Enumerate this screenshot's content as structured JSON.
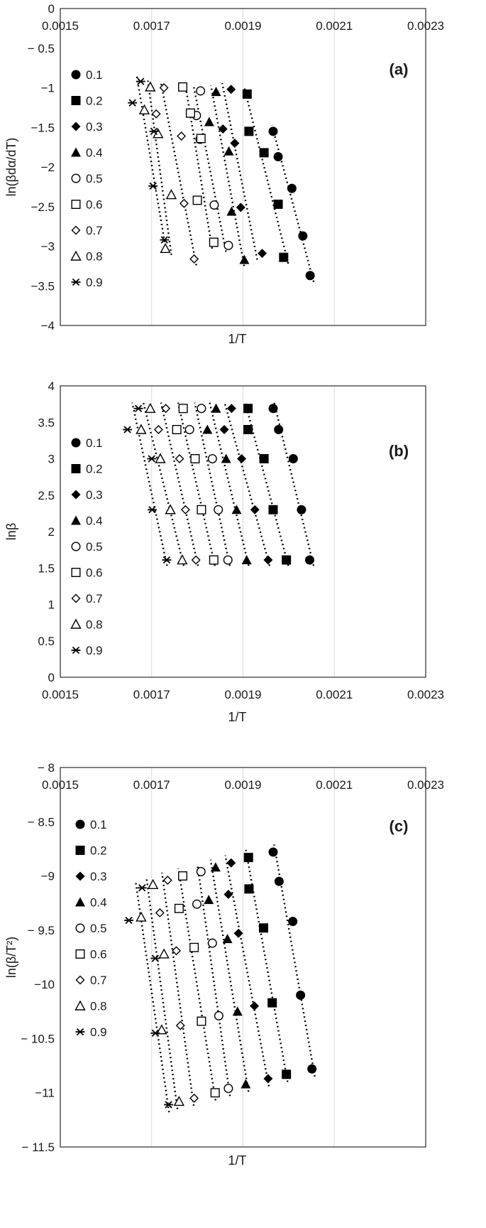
{
  "chart_data": [
    {
      "type": "scatter",
      "panel_label": "(a)",
      "xlabel": "1/T",
      "ylabel": "ln(βdα/dT)",
      "xlim": [
        0.0015,
        0.0023
      ],
      "ylim": [
        -4,
        0
      ],
      "x_ticks": [
        "0.0015",
        "0.0017",
        "0.0019",
        "0.0021",
        "0.0023"
      ],
      "y_ticks": [
        "0",
        "− 0.5",
        "−1",
        "−1.5",
        "−2",
        "−2.5",
        "−3",
        "−3.5",
        "−4"
      ],
      "x_axis_position": "top",
      "grid": "vertical",
      "legend_position": "left",
      "series": [
        {
          "name": "0.1",
          "marker": "filled-circle",
          "x": [
            0.001966,
            0.001977,
            0.002007,
            0.002031,
            0.002047
          ],
          "y": [
            -1.55,
            -1.87,
            -2.27,
            -2.87,
            -3.37
          ]
        },
        {
          "name": "0.2",
          "marker": "filled-square",
          "x": [
            0.001909,
            0.001913,
            0.001946,
            0.001977,
            0.001989
          ],
          "y": [
            -1.08,
            -1.55,
            -1.82,
            -2.47,
            -3.14
          ]
        },
        {
          "name": "0.3",
          "marker": "filled-diamond",
          "x": [
            0.001874,
            0.001856,
            0.001882,
            0.001895,
            0.001942
          ],
          "y": [
            -1.02,
            -1.52,
            -1.7,
            -2.51,
            -3.09
          ]
        },
        {
          "name": "0.4",
          "marker": "filled-triangle",
          "x": [
            0.001841,
            0.001826,
            0.001869,
            0.001875,
            0.001903
          ],
          "y": [
            -1.05,
            -1.43,
            -1.8,
            -2.56,
            -3.17
          ]
        },
        {
          "name": "0.5",
          "marker": "open-circle",
          "x": [
            0.001807,
            0.001798,
            0.001806,
            0.001837,
            0.001868
          ],
          "y": [
            -1.04,
            -1.35,
            -1.65,
            -2.48,
            -2.99
          ]
        },
        {
          "name": "0.6",
          "marker": "open-square",
          "x": [
            0.001768,
            0.001785,
            0.001808,
            0.0018,
            0.001836
          ],
          "y": [
            -0.99,
            -1.32,
            -1.64,
            -2.42,
            -2.95
          ]
        },
        {
          "name": "0.7",
          "marker": "open-diamond",
          "x": [
            0.001727,
            0.00171,
            0.001765,
            0.001771,
            0.001793
          ],
          "y": [
            -1.0,
            -1.33,
            -1.61,
            -2.46,
            -3.16
          ]
        },
        {
          "name": "0.8",
          "marker": "open-triangle",
          "x": [
            0.001697,
            0.001684,
            0.001714,
            0.001743,
            0.00173
          ],
          "y": [
            -0.99,
            -1.28,
            -1.58,
            -2.35,
            -3.03
          ]
        },
        {
          "name": "0.9",
          "marker": "asterisk",
          "x": [
            0.001676,
            0.001658,
            0.001705,
            0.001703,
            0.001728
          ],
          "y": [
            -0.92,
            -1.19,
            -1.55,
            -2.24,
            -2.92
          ]
        }
      ]
    },
    {
      "type": "scatter",
      "panel_label": "(b)",
      "xlabel": "1/T",
      "ylabel": "lnβ",
      "xlim": [
        0.0015,
        0.0023
      ],
      "ylim": [
        0,
        4
      ],
      "x_ticks": [
        "0.0015",
        "0.0017",
        "0.0019",
        "0.0021",
        "0.0023"
      ],
      "y_ticks": [
        "0",
        "0.5",
        "1",
        "1.5",
        "2",
        "2.5",
        "3",
        "3.5",
        "4"
      ],
      "x_axis_position": "bottom",
      "grid": "vertical",
      "legend_position": "left",
      "series": [
        {
          "name": "0.1",
          "marker": "filled-circle",
          "x": [
            0.001966,
            0.001978,
            0.00201,
            0.002028,
            0.002046
          ],
          "y": [
            3.69,
            3.4,
            3.0,
            2.3,
            1.61
          ]
        },
        {
          "name": "0.2",
          "marker": "filled-square",
          "x": [
            0.001911,
            0.001911,
            0.001946,
            0.001966,
            0.001995
          ],
          "y": [
            3.69,
            3.4,
            3.0,
            2.3,
            1.61
          ]
        },
        {
          "name": "0.3",
          "marker": "filled-diamond",
          "x": [
            0.001875,
            0.001859,
            0.001897,
            0.001926,
            0.001955
          ],
          "y": [
            3.69,
            3.4,
            3.0,
            2.3,
            1.61
          ]
        },
        {
          "name": "0.4",
          "marker": "filled-triangle",
          "x": [
            0.001841,
            0.001822,
            0.001863,
            0.001886,
            0.001908
          ],
          "y": [
            3.69,
            3.4,
            3.0,
            2.3,
            1.61
          ]
        },
        {
          "name": "0.5",
          "marker": "open-circle",
          "x": [
            0.001809,
            0.001783,
            0.001833,
            0.001846,
            0.001867
          ],
          "y": [
            3.69,
            3.4,
            3.0,
            2.3,
            1.61
          ]
        },
        {
          "name": "0.6",
          "marker": "open-square",
          "x": [
            0.001769,
            0.001755,
            0.001795,
            0.001809,
            0.001836
          ],
          "y": [
            3.69,
            3.4,
            3.0,
            2.3,
            1.61
          ]
        },
        {
          "name": "0.7",
          "marker": "open-diamond",
          "x": [
            0.001731,
            0.001715,
            0.001761,
            0.001774,
            0.001797
          ],
          "y": [
            3.69,
            3.4,
            3.0,
            2.3,
            1.61
          ]
        },
        {
          "name": "0.8",
          "marker": "open-triangle",
          "x": [
            0.001697,
            0.001677,
            0.001719,
            0.001741,
            0.001767
          ],
          "y": [
            3.69,
            3.4,
            3.0,
            2.3,
            1.61
          ]
        },
        {
          "name": "0.9",
          "marker": "asterisk",
          "x": [
            0.001671,
            0.001647,
            0.0017,
            0.001701,
            0.001733
          ],
          "y": [
            3.69,
            3.4,
            3.0,
            2.3,
            1.61
          ]
        }
      ]
    },
    {
      "type": "scatter",
      "panel_label": "(c)",
      "xlabel": "1/T",
      "ylabel": "ln(β/T²)",
      "xlim": [
        0.0015,
        0.0023
      ],
      "ylim": [
        -11.5,
        -8
      ],
      "x_ticks": [
        "0.0015",
        "0.0017",
        "0.0019",
        "0.0021",
        "0.0023"
      ],
      "y_ticks": [
        "− 8",
        "− 8.5",
        "−9",
        "− 9.5",
        "−10",
        "− 10.5",
        "−11",
        "− 11.5"
      ],
      "x_axis_position": "top",
      "grid": "vertical",
      "legend_position": "left",
      "series": [
        {
          "name": "0.1",
          "marker": "filled-circle",
          "x": [
            0.001966,
            0.001979,
            0.002009,
            0.002026,
            0.002051
          ],
          "y": [
            -8.78,
            -9.05,
            -9.42,
            -10.1,
            -10.78
          ]
        },
        {
          "name": "0.2",
          "marker": "filled-square",
          "x": [
            0.001912,
            0.001913,
            0.001945,
            0.001964,
            0.001995
          ],
          "y": [
            -8.83,
            -9.12,
            -9.48,
            -10.17,
            -10.83
          ]
        },
        {
          "name": "0.3",
          "marker": "filled-diamond",
          "x": [
            0.001874,
            0.001868,
            0.00189,
            0.001925,
            0.001955
          ],
          "y": [
            -8.88,
            -9.17,
            -9.53,
            -10.2,
            -10.87
          ]
        },
        {
          "name": "0.4",
          "marker": "filled-triangle",
          "x": [
            0.00184,
            0.001825,
            0.001866,
            0.001888,
            0.001906
          ],
          "y": [
            -8.92,
            -9.22,
            -9.58,
            -10.25,
            -10.92
          ]
        },
        {
          "name": "0.5",
          "marker": "open-circle",
          "x": [
            0.001808,
            0.001799,
            0.001833,
            0.001847,
            0.001868
          ],
          "y": [
            -8.96,
            -9.26,
            -9.62,
            -10.29,
            -10.96
          ]
        },
        {
          "name": "0.6",
          "marker": "open-square",
          "x": [
            0.001768,
            0.00176,
            0.001793,
            0.001809,
            0.001839
          ],
          "y": [
            -9.0,
            -9.3,
            -9.66,
            -10.34,
            -11.0
          ]
        },
        {
          "name": "0.7",
          "marker": "open-diamond",
          "x": [
            0.001735,
            0.001718,
            0.001754,
            0.001763,
            0.001793
          ],
          "y": [
            -9.04,
            -9.34,
            -9.69,
            -10.38,
            -11.05
          ]
        },
        {
          "name": "0.8",
          "marker": "open-triangle",
          "x": [
            0.001703,
            0.001677,
            0.001727,
            0.001722,
            0.00176
          ],
          "y": [
            -9.08,
            -9.38,
            -9.72,
            -10.42,
            -11.08
          ]
        },
        {
          "name": "0.9",
          "marker": "asterisk",
          "x": [
            0.001679,
            0.00165,
            0.001708,
            0.001708,
            0.001737
          ],
          "y": [
            -9.11,
            -9.41,
            -9.76,
            -10.45,
            -11.11
          ]
        }
      ]
    }
  ]
}
